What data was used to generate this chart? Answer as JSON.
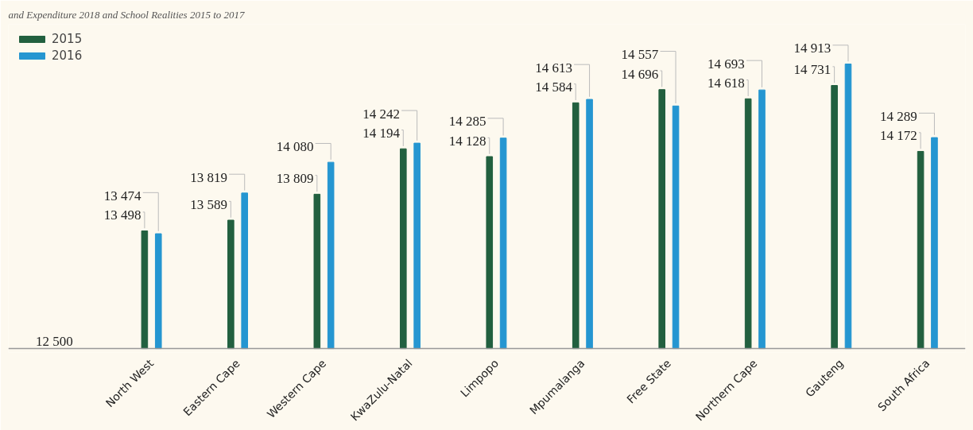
{
  "chart_data": {
    "type": "bar",
    "subtitle": "and Expenditure 2018 and School Realities 2015 to 2017",
    "categories": [
      "North West",
      "Eastern Cape",
      "Western Cape",
      "KwaZulu-Natal",
      "Limpopo",
      "Mpumalanga",
      "Free State",
      "Northern Cape",
      "Gauteng",
      "South Africa"
    ],
    "series": [
      {
        "name": "2015",
        "color": "#22603f",
        "values": [
          13498,
          13589,
          13809,
          14194,
          14128,
          14584,
          14696,
          14618,
          14731,
          14172
        ],
        "value_labels": [
          "13 498",
          "13 589",
          "13 809",
          "14 194",
          "14 128",
          "14 584",
          "14 696",
          "14 618",
          "14 731",
          "14 172"
        ]
      },
      {
        "name": "2016",
        "color": "#2596d1",
        "values": [
          13474,
          13819,
          14080,
          14242,
          14285,
          14613,
          14557,
          14693,
          14913,
          14289
        ],
        "value_labels": [
          "13 474",
          "13 819",
          "14 080",
          "14 242",
          "14 285",
          "14 613",
          "14 557",
          "14 693",
          "14 913",
          "14 289"
        ]
      }
    ],
    "ylim": [
      12500,
      15250
    ],
    "ref_lines": [
      {
        "axis": "y",
        "value": 12500,
        "label": "12 500",
        "color": "#999999"
      }
    ],
    "grid": false,
    "legend": "top left"
  }
}
